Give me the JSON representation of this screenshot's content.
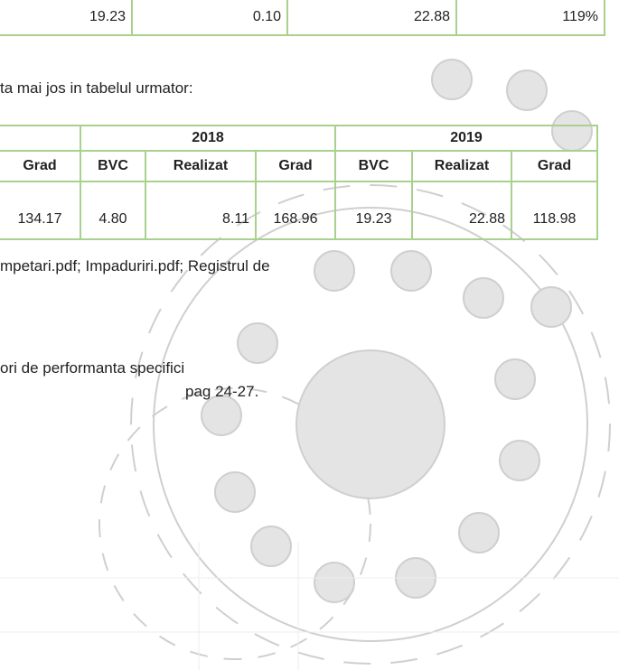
{
  "top_row": [
    "19.23",
    "0.10",
    "22.88",
    "119%"
  ],
  "intro": "ta mai jos in tabelul urmator:",
  "table": {
    "years": [
      "2018",
      "2019"
    ],
    "headers": [
      "Grad",
      "BVC",
      "Realizat",
      "Grad",
      "BVC",
      "Realizat",
      "Grad"
    ],
    "rows": [
      [
        "134.17",
        "4.80",
        "8.11",
        "168.96",
        "19.23",
        "22.88",
        "118.98"
      ]
    ]
  },
  "line1": "mpetari.pdf; Impaduriri.pdf; Registrul de",
  "paragraph": [
    "ori de performanta specifici",
    "pag 24-27."
  ]
}
